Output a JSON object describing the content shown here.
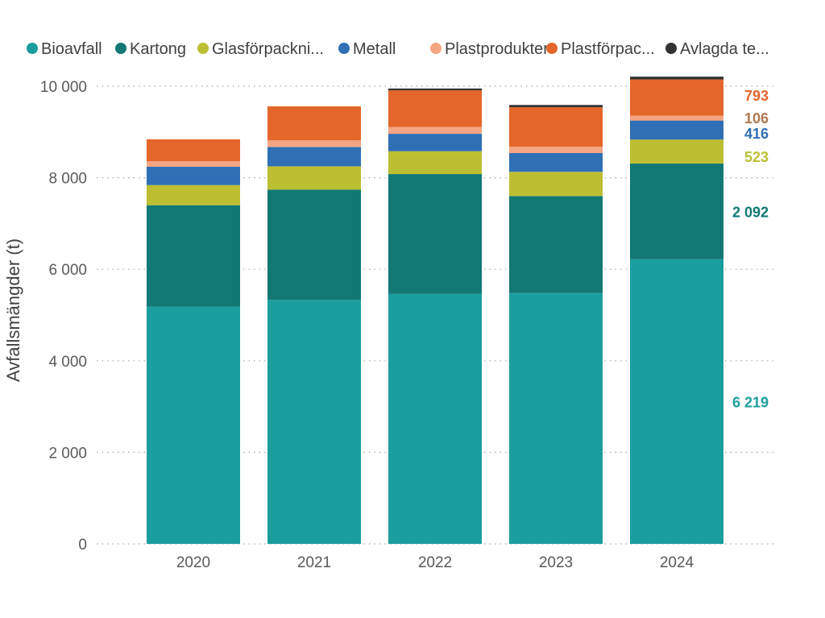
{
  "chart_data": {
    "type": "bar",
    "stacked": true,
    "categories": [
      "2020",
      "2021",
      "2022",
      "2023",
      "2024"
    ],
    "ylabel": "Avfallsmängder (t)",
    "ylim": [
      0,
      10000
    ],
    "yticks": [
      0,
      2000,
      4000,
      6000,
      8000,
      10000
    ],
    "ytick_labels": [
      "0",
      "2 000",
      "4 000",
      "6 000",
      "8 000",
      "10 000"
    ],
    "grid": "horizontal-dotted",
    "legend_position": "top",
    "series": [
      {
        "name": "Bioavfall",
        "color": "#1b9e9e",
        "values": [
          5180,
          5330,
          5460,
          5480,
          6219
        ]
      },
      {
        "name": "Kartong",
        "color": "#117874",
        "values": [
          2220,
          2410,
          2620,
          2120,
          2092
        ]
      },
      {
        "name": "Glasförpackni...",
        "color": "#bcbf32",
        "values": [
          440,
          510,
          500,
          530,
          523
        ]
      },
      {
        "name": "Metall",
        "color": "#2f6fb5",
        "values": [
          400,
          420,
          380,
          410,
          416
        ]
      },
      {
        "name": "Plastprodukter",
        "color": "#f4a582",
        "values": [
          120,
          150,
          150,
          140,
          106
        ]
      },
      {
        "name": "Plastförpac...",
        "color": "#e4662a",
        "values": [
          480,
          740,
          800,
          860,
          793
        ]
      },
      {
        "name": "Avlagda te...",
        "color": "#333333",
        "values": [
          0,
          0,
          40,
          50,
          60
        ]
      }
    ],
    "data_labels": [
      {
        "text": "793",
        "series": 5,
        "color": "#e4662a"
      },
      {
        "text": "106",
        "series": 4,
        "color": "#b07850"
      },
      {
        "text": "416",
        "series": 3,
        "color": "#2f6fb5"
      },
      {
        "text": "523",
        "series": 2,
        "color": "#bcbf32"
      },
      {
        "text": "2 092",
        "series": 1,
        "color": "#117874"
      },
      {
        "text": "6 219",
        "series": 0,
        "color": "#1b9e9e"
      }
    ]
  }
}
